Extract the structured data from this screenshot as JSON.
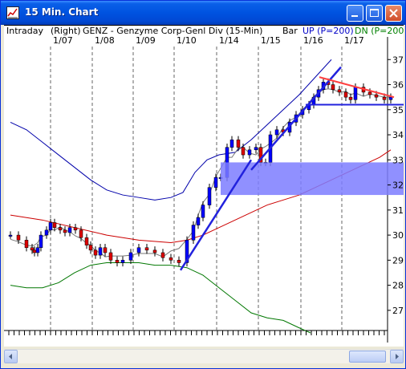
{
  "window": {
    "title": "15 Min. Chart"
  },
  "header": {
    "interval": "Intraday",
    "axis_side": "(Right)",
    "description": "GENZ - Genzyme Corp-Genl Div  (15-Min)",
    "bar_type": "Bar",
    "up_label": "UP (P=200)",
    "dn_label": "DN (P=200)"
  },
  "colors": {
    "up_label": "#0000C8",
    "dn_label": "#008000",
    "upper_band": "#0000AA",
    "lower_band": "#007700",
    "ma_red": "#CC0000",
    "trendline": "#2222DD",
    "resistance": "#FF4040",
    "zone": "#7C7CFF"
  },
  "chart_data": {
    "type": "line",
    "x_tick_labels": [
      "1/07",
      "1/08",
      "1/09",
      "1/10",
      "1/14",
      "1/15",
      "1/16",
      "1/17"
    ],
    "y_tick_labels": [
      "27",
      "28",
      "29",
      "30",
      "31",
      "32",
      "33",
      "34",
      "35",
      "36",
      "37"
    ],
    "ylim": [
      26.1,
      37.2
    ],
    "grid": "vertical dashed at session starts",
    "series": [
      {
        "name": "price",
        "x": [
          0,
          10,
          20,
          27,
          30,
          34,
          38,
          45,
          50,
          55,
          62,
          68,
          74,
          81,
          88,
          95,
          100,
          106,
          112,
          118,
          125,
          133,
          140,
          150,
          160,
          170,
          180,
          190,
          200,
          210,
          220,
          228,
          234,
          240,
          248,
          256,
          262,
          270,
          276,
          284,
          290,
          298,
          306,
          312,
          318,
          324,
          332,
          340,
          348,
          356,
          364,
          372,
          378,
          384,
          390,
          396,
          402,
          410,
          418,
          424,
          430,
          440,
          448,
          456,
          466,
          474
        ],
        "y": [
          30.0,
          29.8,
          29.5,
          29.4,
          29.3,
          29.5,
          30.0,
          30.2,
          30.5,
          30.3,
          30.2,
          30.1,
          30.3,
          30.2,
          29.9,
          29.6,
          29.4,
          29.2,
          29.5,
          29.3,
          29.0,
          28.9,
          29.0,
          29.3,
          29.5,
          29.4,
          29.3,
          29.1,
          29.0,
          28.9,
          29.8,
          30.4,
          30.7,
          31.2,
          31.9,
          32.3,
          32.3,
          33.5,
          33.8,
          33.5,
          33.2,
          33.4,
          33.5,
          32.9,
          32.9,
          34.0,
          34.2,
          34.1,
          34.5,
          34.8,
          35.0,
          35.2,
          35.5,
          35.8,
          36.1,
          36.0,
          35.8,
          35.7,
          35.5,
          35.4,
          35.9,
          35.7,
          35.6,
          35.5,
          35.4,
          35.5
        ]
      },
      {
        "name": "",
        "x": [
          0,
          40,
          80,
          120,
          160,
          200,
          220,
          240,
          260,
          280,
          300,
          320,
          340,
          360,
          380,
          400,
          420,
          440,
          460,
          474
        ],
        "y": [
          30.8,
          30.6,
          30.3,
          30.0,
          29.8,
          29.7,
          29.8,
          30.0,
          30.3,
          30.6,
          30.9,
          31.2,
          31.4,
          31.6,
          31.9,
          32.2,
          32.5,
          32.8,
          33.1,
          33.4
        ]
      },
      {
        "name": "",
        "x": [
          0,
          20,
          40,
          60,
          80,
          100,
          120,
          140,
          160,
          180,
          200,
          215,
          230,
          245,
          260,
          280,
          300,
          320,
          340,
          360,
          380,
          400
        ],
        "y": [
          34.5,
          34.2,
          33.7,
          33.2,
          32.7,
          32.2,
          31.8,
          31.6,
          31.5,
          31.4,
          31.5,
          31.7,
          32.5,
          33.0,
          33.2,
          33.3,
          33.8,
          34.4,
          35.0,
          35.6,
          36.3,
          37.0
        ]
      },
      {
        "name": "",
        "x": [
          0,
          20,
          40,
          60,
          80,
          100,
          120,
          140,
          160,
          180,
          200,
          220,
          240,
          260,
          280,
          300,
          320,
          340,
          360,
          374
        ],
        "y": [
          28.0,
          27.9,
          27.9,
          28.1,
          28.5,
          28.8,
          28.9,
          28.9,
          28.9,
          28.8,
          28.8,
          28.7,
          28.4,
          27.9,
          27.4,
          26.9,
          26.7,
          26.6,
          26.3,
          26.1
        ]
      }
    ],
    "annotations": [
      {
        "type": "trendline",
        "x": [
          212,
          300
        ],
        "y": [
          28.6,
          33.0
        ]
      },
      {
        "type": "trendline",
        "x": [
          300,
          412
        ],
        "y": [
          32.6,
          36.7
        ]
      },
      {
        "type": "resistance",
        "x": [
          385,
          478
        ],
        "y": [
          36.3,
          35.5
        ]
      },
      {
        "type": "support",
        "x": [
          368,
          498
        ],
        "y": [
          35.2,
          35.2
        ]
      },
      {
        "type": "zone",
        "x": [
          262,
          498
        ],
        "y": [
          31.6,
          32.9
        ]
      }
    ]
  }
}
